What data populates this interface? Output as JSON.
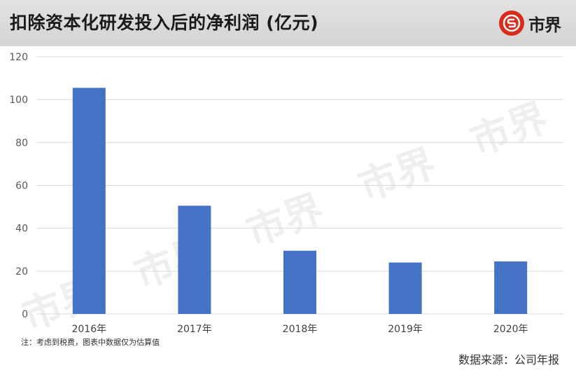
{
  "header": {
    "title": "扣除资本化研发投入后的净利润 (亿元)",
    "logo_text": "市界",
    "logo_icon": "shijie-logo-icon",
    "logo_color": "#d92a1c"
  },
  "watermark_text": "市界",
  "footer": {
    "note": "注：考虑到税费，图表中数据仅为估算值",
    "source": "数据来源：公司年报"
  },
  "chart_data": {
    "type": "bar",
    "title": "扣除资本化研发投入后的净利润 (亿元)",
    "categories": [
      "2016年",
      "2017年",
      "2018年",
      "2019年",
      "2020年"
    ],
    "values": [
      105.5,
      50.5,
      29.5,
      24,
      24.5
    ],
    "ylim": [
      0,
      120
    ],
    "yticks": [
      0,
      20,
      40,
      60,
      80,
      100,
      120
    ],
    "xlabel": "",
    "ylabel": "",
    "grid": true,
    "legend": "none",
    "bar_color": "#4472c4",
    "grid_color": "#d9d9d9"
  }
}
